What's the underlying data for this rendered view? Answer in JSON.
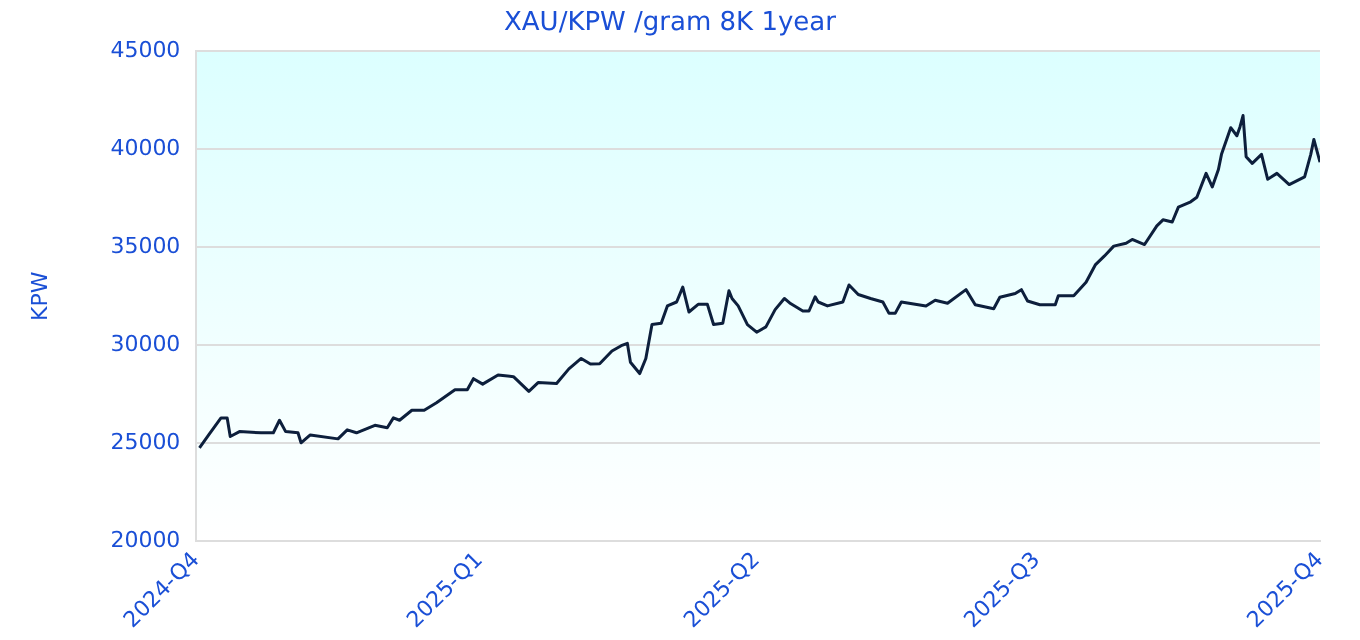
{
  "chart_data": {
    "type": "line",
    "title": "XAU/KPW /gram 8K 1year",
    "ylabel": "KPW",
    "x": [
      "2024-10-02",
      "2024-10-05",
      "2024-10-09",
      "2024-10-11",
      "2024-10-12",
      "2024-10-15",
      "2024-10-22",
      "2024-10-26",
      "2024-10-28",
      "2024-10-30",
      "2024-11-03",
      "2024-11-04",
      "2024-11-07",
      "2024-11-16",
      "2024-11-19",
      "2024-11-22",
      "2024-11-28",
      "2024-12-02",
      "2024-12-04",
      "2024-12-06",
      "2024-12-10",
      "2024-12-14",
      "2024-12-18",
      "2024-12-24",
      "2024-12-28",
      "2024-12-30",
      "2025-01-02",
      "2025-01-07",
      "2025-01-12",
      "2025-01-17",
      "2025-01-20",
      "2025-01-26",
      "2025-01-30",
      "2025-02-03",
      "2025-02-06",
      "2025-02-09",
      "2025-02-13",
      "2025-02-16",
      "2025-02-18",
      "2025-02-19",
      "2025-02-22",
      "2025-02-24",
      "2025-02-26",
      "2025-03-01",
      "2025-03-03",
      "2025-03-06",
      "2025-03-08",
      "2025-03-10",
      "2025-03-13",
      "2025-03-16",
      "2025-03-18",
      "2025-03-21",
      "2025-03-23",
      "2025-03-24",
      "2025-03-26",
      "2025-03-29",
      "2025-04-01",
      "2025-04-04",
      "2025-04-07",
      "2025-04-10",
      "2025-04-12",
      "2025-04-16",
      "2025-04-18",
      "2025-04-20",
      "2025-04-21",
      "2025-04-24",
      "2025-04-29",
      "2025-05-01",
      "2025-05-04",
      "2025-05-08",
      "2025-05-12",
      "2025-05-14",
      "2025-05-16",
      "2025-05-18",
      "2025-05-26",
      "2025-05-29",
      "2025-06-02",
      "2025-06-08",
      "2025-06-11",
      "2025-06-17",
      "2025-06-19",
      "2025-06-24",
      "2025-06-26",
      "2025-06-28",
      "2025-07-02",
      "2025-07-07",
      "2025-07-08",
      "2025-07-13",
      "2025-07-17",
      "2025-07-20",
      "2025-07-23",
      "2025-07-26",
      "2025-07-30",
      "2025-08-01",
      "2025-08-05",
      "2025-08-09",
      "2025-08-11",
      "2025-08-14",
      "2025-08-16",
      "2025-08-20",
      "2025-08-22",
      "2025-08-25",
      "2025-08-27",
      "2025-08-29",
      "2025-08-30",
      "2025-09-02",
      "2025-09-04",
      "2025-09-05",
      "2025-09-06",
      "2025-09-07",
      "2025-09-09",
      "2025-09-12",
      "2025-09-14",
      "2025-09-17",
      "2025-09-21",
      "2025-09-26",
      "2025-09-28",
      "2025-09-29",
      "2025-10-01"
    ],
    "series": [
      {
        "color": "#0d1f3c",
        "values": [
          24770,
          25430,
          26300,
          26300,
          25350,
          25600,
          25540,
          25540,
          26180,
          25600,
          25540,
          25030,
          25430,
          25230,
          25690,
          25540,
          25920,
          25800,
          26300,
          26180,
          26690,
          26690,
          27070,
          27730,
          27730,
          28300,
          28020,
          28490,
          28400,
          27650,
          28100,
          28050,
          28800,
          29330,
          29050,
          29060,
          29710,
          29980,
          30100,
          29140,
          28560,
          29330,
          31060,
          31130,
          32010,
          32210,
          32970,
          31700,
          32090,
          32090,
          31060,
          31130,
          32780,
          32390,
          32010,
          31060,
          30670,
          30940,
          31820,
          32390,
          32130,
          31750,
          31750,
          32470,
          32210,
          32010,
          32210,
          33080,
          32590,
          32390,
          32210,
          31630,
          31630,
          32210,
          32010,
          32300,
          32150,
          32840,
          32070,
          31870,
          32450,
          32640,
          32840,
          32260,
          32070,
          32070,
          32530,
          32530,
          33220,
          34100,
          34560,
          35060,
          35210,
          35400,
          35140,
          36090,
          36400,
          36290,
          37050,
          37320,
          37550,
          38770,
          38080,
          38970,
          39740,
          41100,
          40690,
          41140,
          41720,
          39620,
          39280,
          39740,
          38470,
          38770,
          38200,
          38590,
          39740,
          40500,
          39340
        ]
      }
    ],
    "xlim": [
      "2024-10-01",
      "2025-10-01"
    ],
    "xticks": [
      {
        "value": "2024-10-01",
        "label": "2024-Q4"
      },
      {
        "value": "2025-01-01",
        "label": "2025-Q1"
      },
      {
        "value": "2025-04-01",
        "label": "2025-Q2"
      },
      {
        "value": "2025-07-01",
        "label": "2025-Q3"
      },
      {
        "value": "2025-10-01",
        "label": "2025-Q4"
      }
    ],
    "ylim": [
      20000,
      45000
    ],
    "yticks": [
      20000,
      25000,
      30000,
      35000,
      40000,
      45000
    ],
    "grid": "y",
    "legend": false,
    "marker": "none",
    "line_style": "solid"
  }
}
